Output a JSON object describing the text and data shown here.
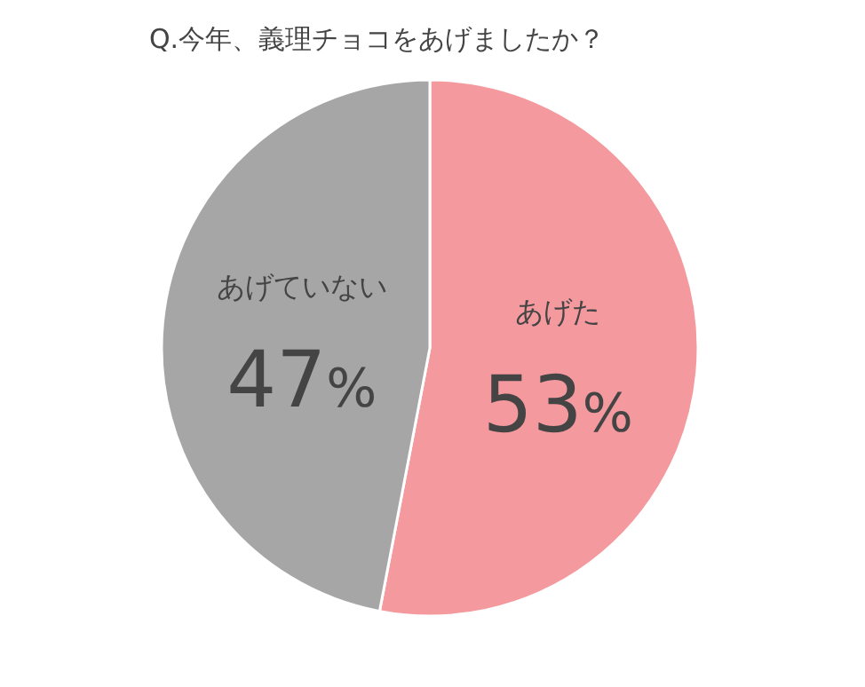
{
  "chart_data": {
    "type": "pie",
    "title": "Q.今年、義理チョコをあげましたか？",
    "categories": [
      "あげた",
      "あげていない"
    ],
    "values": [
      53,
      47
    ],
    "colors": [
      "#f4999e",
      "#a6a6a6"
    ],
    "value_labels": [
      "53%",
      "47%"
    ]
  }
}
